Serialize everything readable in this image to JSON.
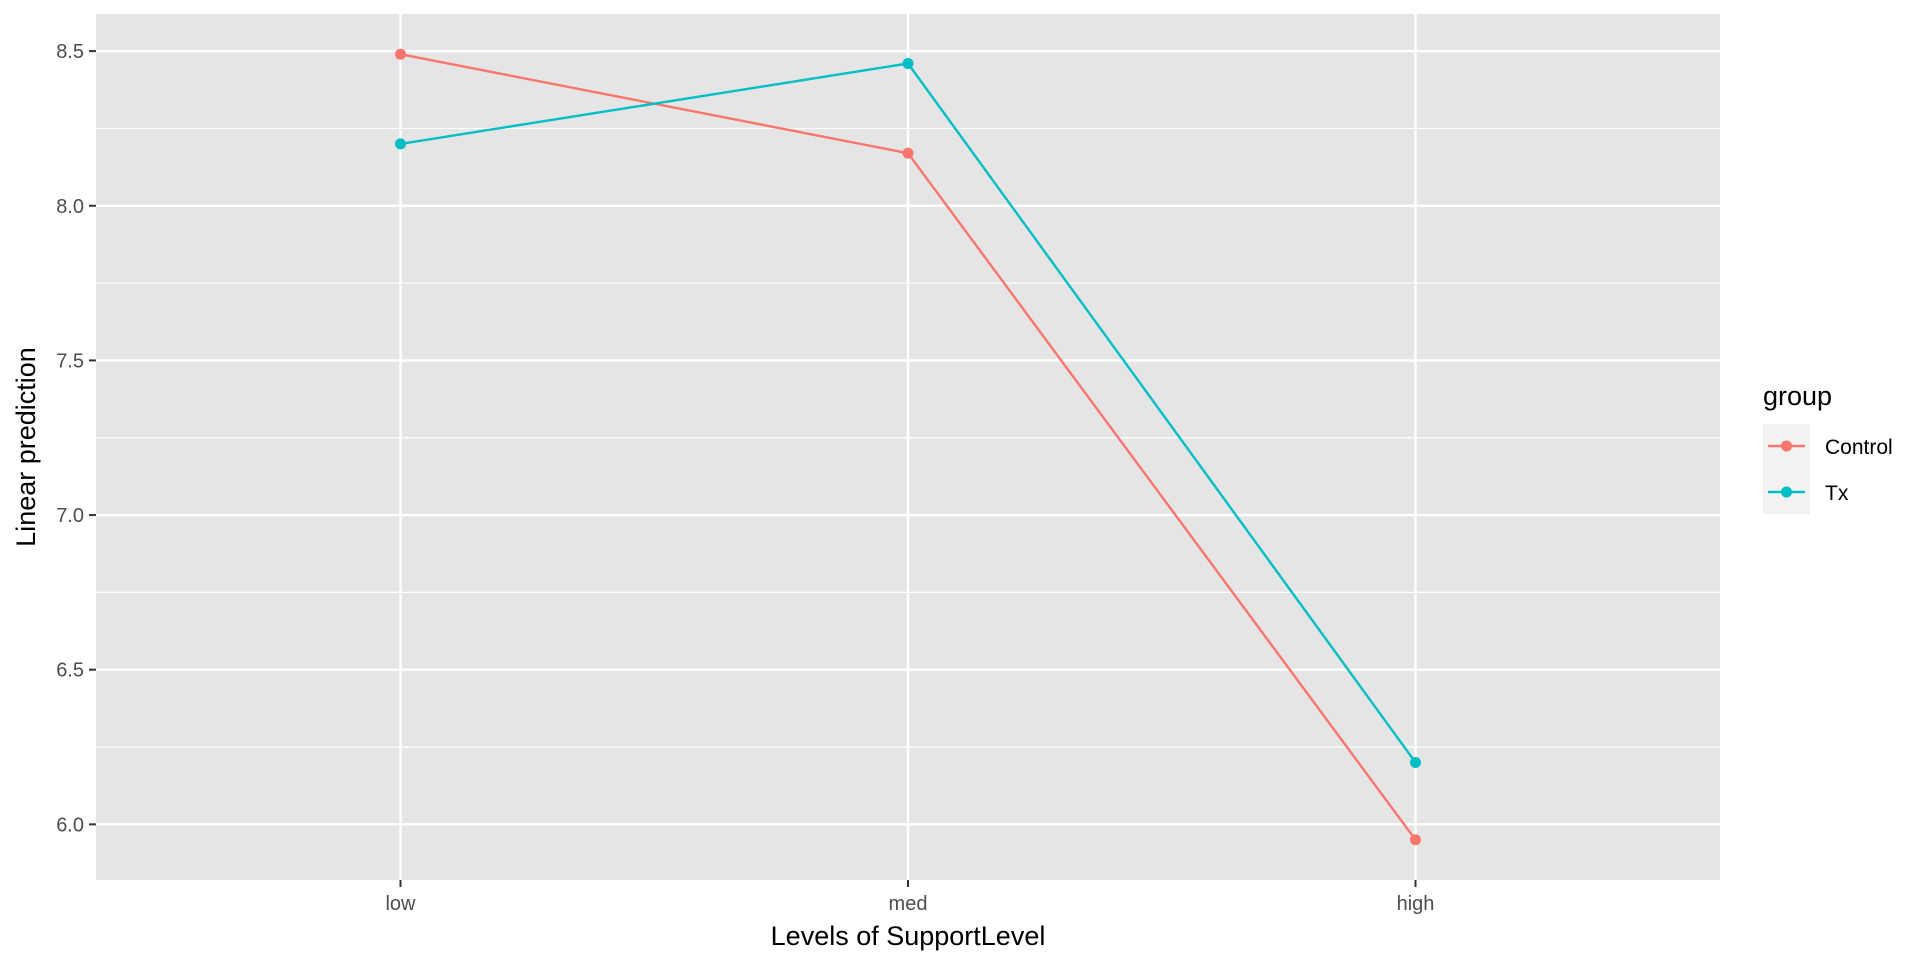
{
  "chart_data": {
    "type": "line",
    "title": "",
    "xlabel": "Levels of SupportLevel",
    "ylabel": "Linear prediction",
    "categories": [
      "low",
      "med",
      "high"
    ],
    "x_range": [
      0.4,
      3.6
    ],
    "ylim": [
      5.82,
      8.62
    ],
    "y_ticks": [
      6.0,
      6.5,
      7.0,
      7.5,
      8.0,
      8.5
    ],
    "y_tick_labels": [
      "6.0",
      "6.5",
      "7.0",
      "7.5",
      "8.0",
      "8.5"
    ],
    "y_minor_ticks": [
      6.25,
      6.75,
      7.25,
      7.75,
      8.25
    ],
    "grid": true,
    "legend": {
      "title": "group",
      "position": "right"
    },
    "series": [
      {
        "name": "Control",
        "color": "#F8766D",
        "values": [
          8.49,
          8.17,
          5.95
        ]
      },
      {
        "name": "Tx",
        "color": "#00BFC4",
        "values": [
          8.2,
          8.46,
          6.2
        ]
      }
    ],
    "panel_background": "#E5E5E5",
    "grid_color": "#FFFFFF"
  }
}
